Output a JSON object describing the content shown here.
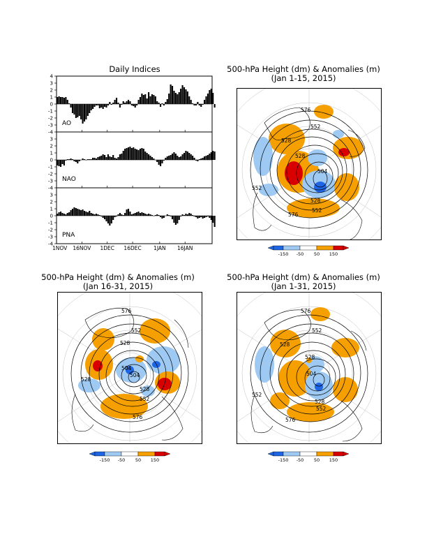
{
  "indices_panel": {
    "title": "Daily Indices",
    "x_tick_labels": [
      "1NOV",
      "16NOV",
      "1DEC",
      "16DEC",
      "1JAN",
      "16JAN"
    ]
  },
  "map_panels": [
    {
      "title_line1": "500-hPa Height (dm) & Anomalies (m)",
      "title_line2": "(Jan 1-15, 2015)"
    },
    {
      "title_line1": "500-hPa Height (dm) & Anomalies (m)",
      "title_line2": "(Jan 16-31, 2015)"
    },
    {
      "title_line1": "500-hPa Height (dm) & Anomalies (m)",
      "title_line2": "(Jan 1-31, 2015)"
    }
  ],
  "map_contour_labels": [
    "576",
    "552",
    "528",
    "504"
  ],
  "anomaly_colorbar": {
    "tick_labels": [
      "-150",
      "-50",
      "50",
      "150"
    ],
    "colors": [
      "#1f66e5",
      "#9ec9f2",
      "#ffffff",
      "#f5a000",
      "#d80000"
    ]
  },
  "chart_data": [
    {
      "type": "bar",
      "name": "AO",
      "ylim": [
        -4,
        4
      ],
      "yticks": [
        -4,
        -3,
        -2,
        -1,
        0,
        1,
        2,
        3,
        4
      ],
      "x_start": "1NOV",
      "values": [
        1,
        1.1,
        1,
        1,
        0.9,
        1,
        0.6,
        0.1,
        -0.5,
        -1.3,
        -1.5,
        -2,
        -1.9,
        -1.7,
        -2.2,
        -2.8,
        -2.5,
        -2.2,
        -1.7,
        -1.3,
        -0.9,
        -0.7,
        -0.4,
        -0.2,
        -0.2,
        -0.6,
        -0.5,
        -0.7,
        -0.4,
        -0.5,
        -0.2,
        0.3,
        -0.1,
        0.2,
        0.6,
        0.9,
        0.2,
        -0.5,
        -0.1,
        0.4,
        0.2,
        0.4,
        0.6,
        0.4,
        -0.2,
        -0.3,
        -0.5,
        -0.2,
        0.6,
        1,
        1.5,
        1.3,
        1.4,
        0.8,
        1.7,
        1.1,
        1.4,
        1.3,
        1.1,
        0.4,
        0.2,
        -0.4,
        0.1,
        -0.2,
        0.3,
        0.7,
        1.5,
        2.8,
        2.6,
        1.9,
        1.6,
        1.4,
        1.7,
        2.2,
        2.7,
        2.4,
        2.1,
        1.8,
        1.1,
        0.6,
        0.1,
        -0.2,
        -0.2,
        0.3,
        -0.2,
        -0.4,
        -0.1,
        0.6,
        1.1,
        1.5,
        2.0,
        2.2,
        1.6,
        -0.5
      ]
    },
    {
      "type": "bar",
      "name": "NAO",
      "ylim": [
        -4,
        4
      ],
      "yticks": [
        -4,
        -3,
        -2,
        -1,
        0,
        1,
        2,
        3,
        4
      ],
      "x_start": "1NOV",
      "values": [
        -0.8,
        -0.9,
        -1,
        -0.6,
        -0.8,
        -0.1,
        0.1,
        0.1,
        0.2,
        0.1,
        -0.2,
        -0.3,
        -0.5,
        -0.2,
        0,
        0.2,
        0.1,
        0,
        0.1,
        0.1,
        0.1,
        0.3,
        0.3,
        0.2,
        0.4,
        0.5,
        0.6,
        0.8,
        0.7,
        0.4,
        0.8,
        0.5,
        0.4,
        0.7,
        0.3,
        0.2,
        0.4,
        0.8,
        0.9,
        1.3,
        1.6,
        1.7,
        1.8,
        1.9,
        1.7,
        1.8,
        1.6,
        1.5,
        1.4,
        1.6,
        1.7,
        1.6,
        1.2,
        1.0,
        0.8,
        0.6,
        0.4,
        0.2,
        0.0,
        -0.3,
        -0.7,
        -0.9,
        -0.5,
        -0.1,
        0.3,
        0.5,
        0.6,
        0.7,
        0.9,
        1.1,
        0.9,
        0.6,
        0.4,
        0.5,
        0.8,
        1.0,
        1.3,
        1.2,
        1.0,
        0.8,
        0.6,
        0.3,
        -0.1,
        -0.2,
        0.1,
        0.2,
        0.3,
        0.5,
        0.6,
        0.7,
        0.9,
        1.1,
        1.3,
        1.2
      ]
    },
    {
      "type": "bar",
      "name": "PNA",
      "ylim": [
        -4,
        4
      ],
      "yticks": [
        -4,
        -3,
        -2,
        -1,
        0,
        1,
        2,
        3,
        4
      ],
      "x_start": "1NOV",
      "values": [
        0.3,
        0.5,
        0.6,
        0.4,
        0.3,
        0.2,
        0.4,
        0.5,
        0.8,
        1.0,
        1.2,
        1.1,
        1.0,
        0.9,
        0.8,
        0.9,
        0.7,
        0.6,
        0.5,
        0.7,
        0.4,
        0.3,
        0.2,
        0.3,
        0.2,
        0.1,
        -0.1,
        -0.3,
        -0.5,
        -0.8,
        -1.1,
        -1.4,
        -1.1,
        -0.6,
        -0.2,
        -0.1,
        0.2,
        0.4,
        0.2,
        0.1,
        0.4,
        0.9,
        1.0,
        0.6,
        0.2,
        0.3,
        0.4,
        0.5,
        0.6,
        0.4,
        0.5,
        0.4,
        0.3,
        0.2,
        0.3,
        0.2,
        0.1,
        0.0,
        0.1,
        0.2,
        0.1,
        -0.2,
        -0.4,
        -0.3,
        0.0,
        0.2,
        0.1,
        -0.1,
        -0.5,
        -1.0,
        -1.3,
        -1.1,
        -0.6,
        -0.1,
        0.2,
        0.1,
        0.3,
        0.2,
        0.4,
        0.3,
        0.1,
        -0.1,
        -0.2,
        -0.4,
        -0.3,
        -0.2,
        -0.4,
        -0.3,
        -0.2,
        -0.1,
        -0.3,
        -0.6,
        -1.0,
        -1.6
      ]
    }
  ]
}
